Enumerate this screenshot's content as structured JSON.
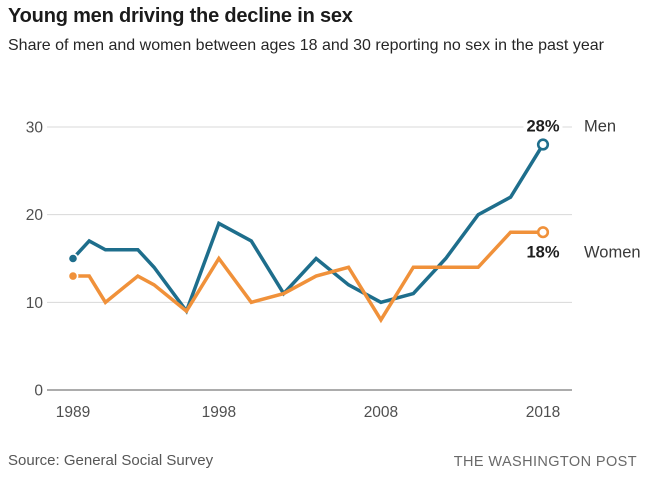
{
  "header": {
    "title": "Young men driving the decline in sex",
    "subtitle": "Share of men and women between ages 18 and 30 reporting no sex in the past year"
  },
  "chart_data": {
    "type": "line",
    "x": [
      1989,
      1990,
      1991,
      1993,
      1994,
      1996,
      1998,
      2000,
      2002,
      2004,
      2006,
      2008,
      2010,
      2012,
      2014,
      2016,
      2018
    ],
    "series": [
      {
        "name": "Men",
        "color": "#1e6e8c",
        "values": [
          15,
          17,
          16,
          16,
          14,
          9,
          19,
          17,
          11,
          15,
          12,
          10,
          11,
          15,
          20,
          22,
          28
        ],
        "end_label": "28%"
      },
      {
        "name": "Women",
        "color": "#f0913a",
        "values": [
          13,
          13,
          10,
          13,
          12,
          9,
          15,
          10,
          11,
          13,
          14,
          8,
          14,
          14,
          14,
          18,
          18
        ],
        "end_label": "18%"
      }
    ],
    "xlim": [
      1989,
      2018
    ],
    "ylim": [
      0,
      30
    ],
    "yticks": [
      "0",
      "10",
      "20",
      "30"
    ],
    "xticks": [
      "1989",
      "1998",
      "2008",
      "2018"
    ],
    "grid": true,
    "legend_position": "right of line ends",
    "marker_start": "filled dot",
    "marker_end": "open circle",
    "grid_color": "#d8d8d8",
    "axis_color": "#909090",
    "tick_label_color": "#4f4f4f"
  },
  "footer": {
    "source": "Source: General Social Survey",
    "credit": "THE WASHINGTON POST"
  }
}
